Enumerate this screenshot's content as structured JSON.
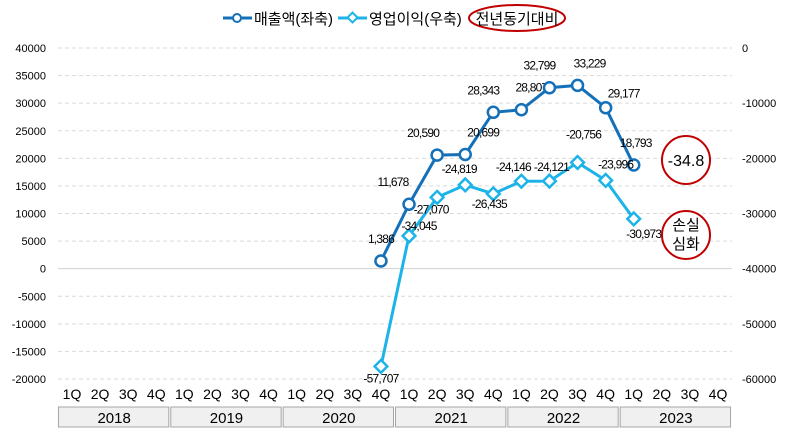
{
  "chart_data": {
    "type": "line",
    "title": "",
    "categories": [
      "1Q",
      "2Q",
      "3Q",
      "4Q",
      "1Q",
      "2Q",
      "3Q",
      "4Q",
      "1Q",
      "2Q",
      "3Q",
      "4Q",
      "1Q",
      "2Q",
      "3Q",
      "4Q",
      "1Q",
      "2Q",
      "3Q",
      "4Q",
      "1Q",
      "2Q",
      "3Q",
      "4Q"
    ],
    "years": [
      "2018",
      "2019",
      "2020",
      "2021",
      "2022",
      "2023"
    ],
    "series": [
      {
        "name": "매출액(좌축)",
        "axis": "left",
        "color": "#1470b8",
        "marker": "circle",
        "values": [
          null,
          null,
          null,
          null,
          null,
          null,
          null,
          null,
          null,
          null,
          null,
          1386,
          11678,
          20590,
          20699,
          28343,
          28807,
          32799,
          33229,
          29177,
          18793,
          null,
          null,
          null
        ],
        "labels": [
          "1,386",
          "11,678",
          "20,590",
          "20,699",
          "28,343",
          "28,807",
          "32,799",
          "33,229",
          "29,177",
          "18,793"
        ]
      },
      {
        "name": "영업이익(우축)",
        "axis": "right",
        "color": "#1cb4e8",
        "marker": "diamond",
        "values": [
          null,
          null,
          null,
          null,
          null,
          null,
          null,
          null,
          null,
          null,
          null,
          -57707,
          -34045,
          -27070,
          -24819,
          -26435,
          -24146,
          -24121,
          -20756,
          -23996,
          -30973,
          null,
          null,
          null
        ],
        "labels": [
          "-57,707",
          "-34,045",
          "-27,070",
          "-24,819",
          "-26,435",
          "-24,146",
          "-24,121",
          "-20,756",
          "-23,996",
          "-30,973"
        ]
      }
    ],
    "left_axis": {
      "ylim": [
        -20000,
        40000
      ],
      "ticks": [
        "40000",
        "35000",
        "30000",
        "25000",
        "20000",
        "15000",
        "10000",
        "5000",
        "0",
        "-5000",
        "-10000",
        "-15000",
        "-20000"
      ]
    },
    "right_axis": {
      "ylim": [
        -60000,
        0
      ],
      "ticks": [
        "0",
        "-10000",
        "-20000",
        "-30000",
        "-40000",
        "-50000",
        "-60000"
      ]
    },
    "legend_position": "top-center",
    "legend_extra": "전년동기대비",
    "annotations": [
      "-34.8",
      "손실",
      "심화"
    ],
    "grid": true
  }
}
